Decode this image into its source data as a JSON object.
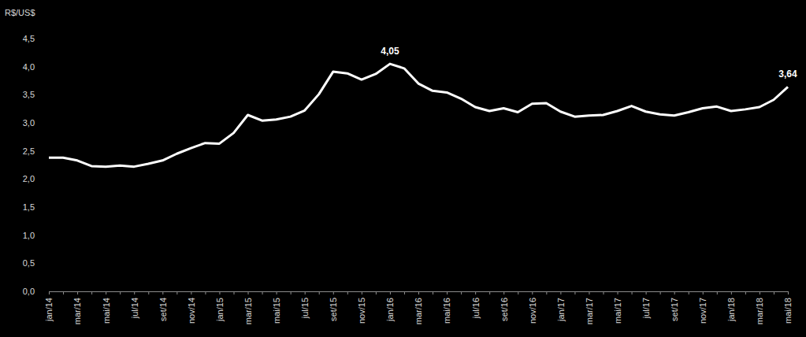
{
  "chart_data": {
    "type": "line",
    "y_label": "R$/US$",
    "color": "#ffffff",
    "categories": [
      "jan/14",
      null,
      "mar/14",
      null,
      "mai/14",
      null,
      "jul/14",
      null,
      "set/14",
      null,
      "nov/14",
      null,
      "jan/15",
      null,
      "mar/15",
      null,
      "mai/15",
      null,
      "jul/15",
      null,
      "set/15",
      null,
      "nov/15",
      null,
      "jan/16",
      null,
      "mar/16",
      null,
      "mai/16",
      null,
      "jul/16",
      null,
      "set/16",
      null,
      "nov/16",
      null,
      "jan/17",
      null,
      "mar/17",
      null,
      "mai/17",
      null,
      "jul/17",
      null,
      "set/17",
      null,
      "nov/17",
      null,
      "jan/18",
      null,
      "mar/18",
      null,
      "mai/18"
    ],
    "values": [
      2.38,
      2.38,
      2.33,
      2.23,
      2.22,
      2.24,
      2.22,
      2.27,
      2.33,
      2.45,
      2.55,
      2.64,
      2.63,
      2.82,
      3.14,
      3.04,
      3.06,
      3.11,
      3.22,
      3.51,
      3.91,
      3.88,
      3.77,
      3.87,
      4.05,
      3.97,
      3.7,
      3.57,
      3.54,
      3.43,
      3.28,
      3.21,
      3.26,
      3.19,
      3.34,
      3.35,
      3.2,
      3.11,
      3.13,
      3.14,
      3.21,
      3.3,
      3.2,
      3.15,
      3.13,
      3.19,
      3.26,
      3.29,
      3.21,
      3.24,
      3.28,
      3.41,
      3.64
    ],
    "ylim": [
      0,
      4.5
    ],
    "yticks": [
      {
        "value": 0,
        "label": "0,0"
      },
      {
        "value": 0.5,
        "label": "0,5"
      },
      {
        "value": 1,
        "label": "1,0"
      },
      {
        "value": 1.5,
        "label": "1,5"
      },
      {
        "value": 2,
        "label": "2,0"
      },
      {
        "value": 2.5,
        "label": "2,5"
      },
      {
        "value": 3,
        "label": "3,0"
      },
      {
        "value": 3.5,
        "label": "3,5"
      },
      {
        "value": 4,
        "label": "4,0"
      },
      {
        "value": 4.5,
        "label": "4,5"
      }
    ],
    "annotations": [
      {
        "x": "jan/16",
        "y": 4.05,
        "text": "4,05"
      },
      {
        "x": "mai/18",
        "y": 3.64,
        "text": "3,64"
      }
    ],
    "grid": false
  }
}
